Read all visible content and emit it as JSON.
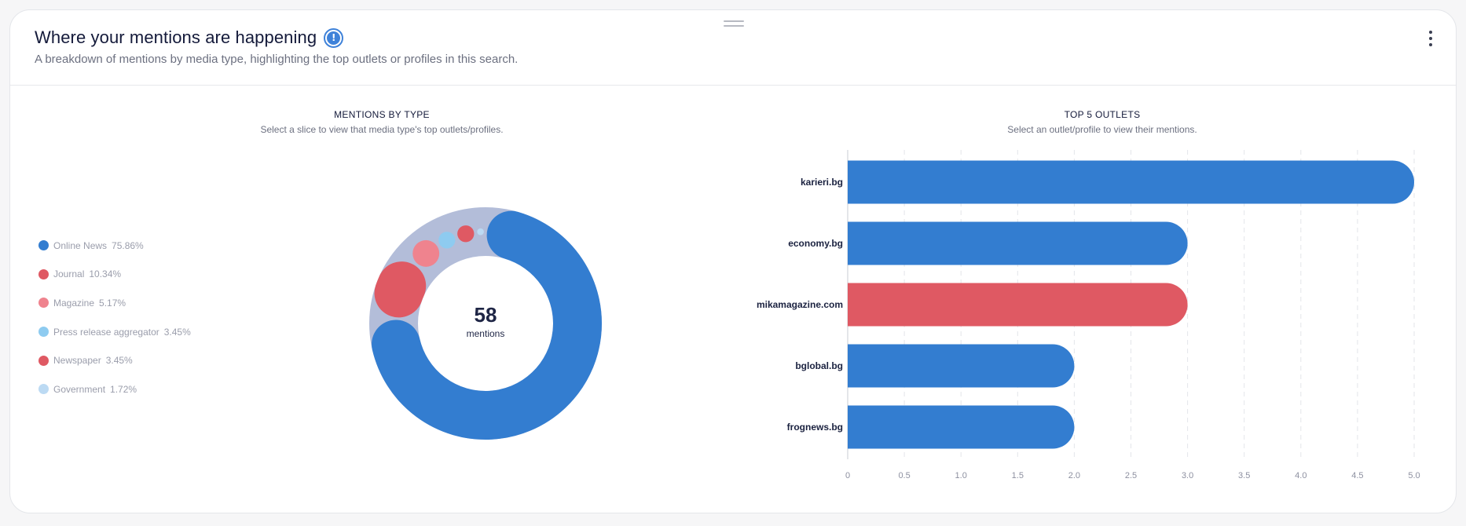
{
  "header": {
    "title": "Where your mentions are happening",
    "subtitle": "A breakdown of mentions by media type, highlighting the top outlets or profiles in this search.",
    "info_icon": "exclamation-icon",
    "menu_icon": "vertical-ellipsis-icon"
  },
  "donut_panel": {
    "title": "MENTIONS BY TYPE",
    "subtitle": "Select a slice to view that media type's top outlets/profiles.",
    "total_value": "58",
    "total_label": "mentions"
  },
  "bar_panel": {
    "title": "TOP 5 OUTLETS",
    "subtitle": "Select an outlet/profile to view their mentions."
  },
  "colors": {
    "online_news": "#337dd0",
    "journal": "#df5963",
    "magazine": "#ef838e",
    "press_release": "#8ecbf0",
    "newspaper": "#df5963",
    "government": "#bcdaf3",
    "track": "#b3bdd9"
  },
  "chart_data": [
    {
      "type": "pie",
      "title": "MENTIONS BY TYPE",
      "center_total": 58,
      "slices": [
        {
          "label": "Online News",
          "percent": 75.86,
          "pct_text": "75.86%",
          "color": "#337dd0"
        },
        {
          "label": "Journal",
          "percent": 10.34,
          "pct_text": "10.34%",
          "color": "#df5963"
        },
        {
          "label": "Magazine",
          "percent": 5.17,
          "pct_text": "5.17%",
          "color": "#ef838e"
        },
        {
          "label": "Press release aggregator",
          "percent": 3.45,
          "pct_text": "3.45%",
          "color": "#8ecbf0"
        },
        {
          "label": "Newspaper",
          "percent": 3.45,
          "pct_text": "3.45%",
          "color": "#df5963"
        },
        {
          "label": "Government",
          "percent": 1.72,
          "pct_text": "1.72%",
          "color": "#bcdaf3"
        }
      ]
    },
    {
      "type": "bar",
      "orientation": "horizontal",
      "title": "TOP 5 OUTLETS",
      "categories": [
        "karieri.bg",
        "economy.bg",
        "mikamagazine.com",
        "bglobal.bg",
        "frognews.bg"
      ],
      "values": [
        5,
        3,
        3,
        2,
        2
      ],
      "colors": [
        "#337dd0",
        "#337dd0",
        "#df5963",
        "#337dd0",
        "#337dd0"
      ],
      "xlim": [
        0,
        5
      ],
      "xticks": [
        "0",
        "0.5",
        "1.0",
        "1.5",
        "2.0",
        "2.5",
        "3.0",
        "3.5",
        "4.0",
        "4.5",
        "5.0"
      ],
      "grid": true
    }
  ]
}
